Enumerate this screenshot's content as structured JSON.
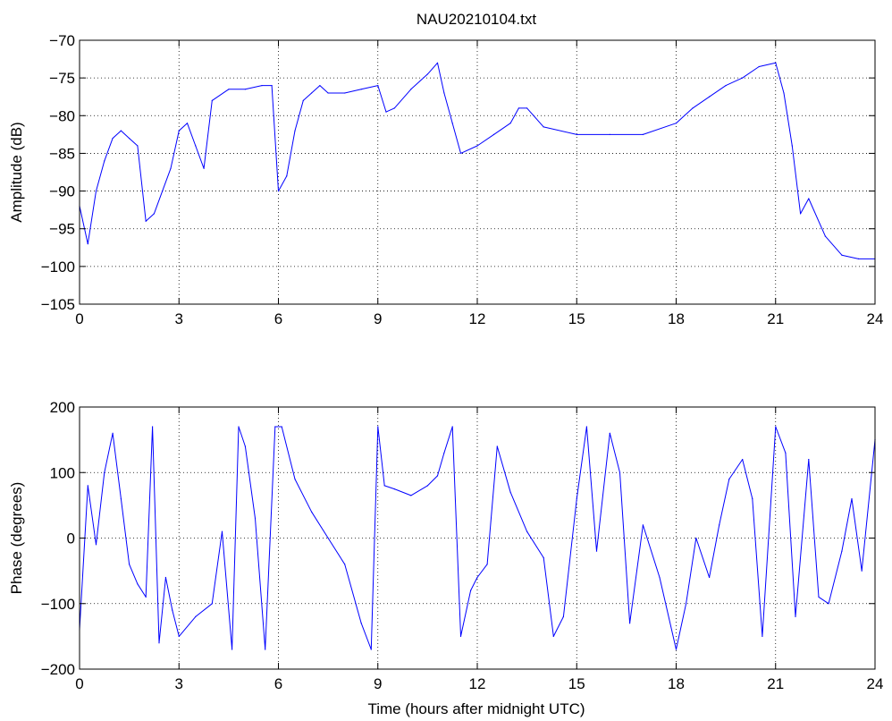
{
  "figure": {
    "title": "NAU20210104.txt",
    "xlabel": "Time (hours after midnight UTC)"
  },
  "colors": {
    "line": "#0000ff",
    "axes": "#000000",
    "grid": "#000000",
    "background": "#ffffff"
  },
  "chart_data": [
    {
      "type": "line",
      "name": "amplitude-panel",
      "title": "NAU20210104.txt",
      "xlabel": "",
      "ylabel": "Amplitude (dB)",
      "xlim": [
        0,
        24
      ],
      "ylim": [
        -105,
        -70
      ],
      "xticks": [
        "0",
        "3",
        "6",
        "9",
        "12",
        "15",
        "18",
        "21",
        "24"
      ],
      "yticks": [
        "-70",
        "-75",
        "-80",
        "-85",
        "-90",
        "-95",
        "-100",
        "-105"
      ],
      "grid": true,
      "series": [
        {
          "color": "#0000ff",
          "x": [
            0,
            0.25,
            0.5,
            0.75,
            1,
            1.25,
            1.5,
            1.75,
            2,
            2.25,
            2.5,
            2.75,
            3,
            3.25,
            3.5,
            3.75,
            4,
            4.5,
            5,
            5.5,
            5.8,
            6,
            6.25,
            6.5,
            6.75,
            7,
            7.25,
            7.5,
            8,
            8.5,
            9,
            9.25,
            9.5,
            10,
            10.5,
            10.8,
            11,
            11.25,
            11.5,
            12,
            12.5,
            13,
            13.25,
            13.5,
            14,
            15,
            16,
            17,
            18,
            18.5,
            19,
            19.5,
            20,
            20.5,
            21,
            21.25,
            21.5,
            21.75,
            22,
            22.5,
            23,
            23.5,
            24
          ],
          "y": [
            -92,
            -97,
            -90,
            -86,
            -83,
            -82,
            -83,
            -84,
            -94,
            -93,
            -90,
            -87,
            -82,
            -81,
            -84,
            -87,
            -78,
            -76.5,
            -76.5,
            -76,
            -76,
            -90,
            -88,
            -82,
            -78,
            -77,
            -76,
            -77,
            -77,
            -76.5,
            -76,
            -79.5,
            -79,
            -76.5,
            -74.5,
            -73,
            -77,
            -81,
            -85,
            -84,
            -82.5,
            -81,
            -79,
            -79,
            -81.5,
            -82.5,
            -82.5,
            -82.5,
            -81,
            -79,
            -77.5,
            -76,
            -75,
            -73.5,
            -73,
            -77,
            -84,
            -93,
            -91,
            -96,
            -98.5,
            -99,
            -99
          ]
        }
      ]
    },
    {
      "type": "line",
      "name": "phase-panel",
      "title": "",
      "xlabel": "Time (hours after midnight UTC)",
      "ylabel": "Phase (degrees)",
      "xlim": [
        0,
        24
      ],
      "ylim": [
        -200,
        200
      ],
      "xticks": [
        "0",
        "3",
        "6",
        "9",
        "12",
        "15",
        "18",
        "21",
        "24"
      ],
      "yticks": [
        "200",
        "100",
        "0",
        "-100",
        "-200"
      ],
      "grid": true,
      "series": [
        {
          "color": "#0000ff",
          "x": [
            0,
            0.25,
            0.5,
            0.75,
            1,
            1.25,
            1.5,
            1.75,
            2,
            2.2,
            2.4,
            2.6,
            2.8,
            3,
            3.5,
            4,
            4.3,
            4.6,
            4.8,
            5,
            5.3,
            5.6,
            5.9,
            6.1,
            6.5,
            7,
            7.5,
            8,
            8.5,
            8.8,
            9,
            9.2,
            9.5,
            10,
            10.5,
            10.8,
            11,
            11.25,
            11.5,
            11.8,
            12,
            12.3,
            12.6,
            13,
            13.5,
            14,
            14.3,
            14.6,
            15,
            15.3,
            15.6,
            16,
            16.3,
            16.6,
            17,
            17.5,
            18,
            18.3,
            18.6,
            19,
            19.3,
            19.6,
            20,
            20.3,
            20.6,
            21,
            21.3,
            21.6,
            22,
            22.3,
            22.6,
            23,
            23.3,
            23.6,
            24
          ],
          "y": [
            -140,
            80,
            -10,
            100,
            160,
            60,
            -40,
            -70,
            -90,
            170,
            -160,
            -60,
            -110,
            -150,
            -120,
            -100,
            10,
            -170,
            170,
            140,
            30,
            -170,
            170,
            170,
            90,
            40,
            0,
            -40,
            -130,
            -170,
            170,
            80,
            75,
            65,
            80,
            95,
            130,
            170,
            -150,
            -80,
            -60,
            -40,
            140,
            70,
            10,
            -30,
            -150,
            -120,
            60,
            170,
            -20,
            160,
            100,
            -130,
            20,
            -60,
            -170,
            -100,
            0,
            -60,
            20,
            90,
            120,
            60,
            -150,
            170,
            130,
            -120,
            120,
            -90,
            -100,
            -20,
            60,
            -50,
            150
          ]
        }
      ]
    }
  ]
}
